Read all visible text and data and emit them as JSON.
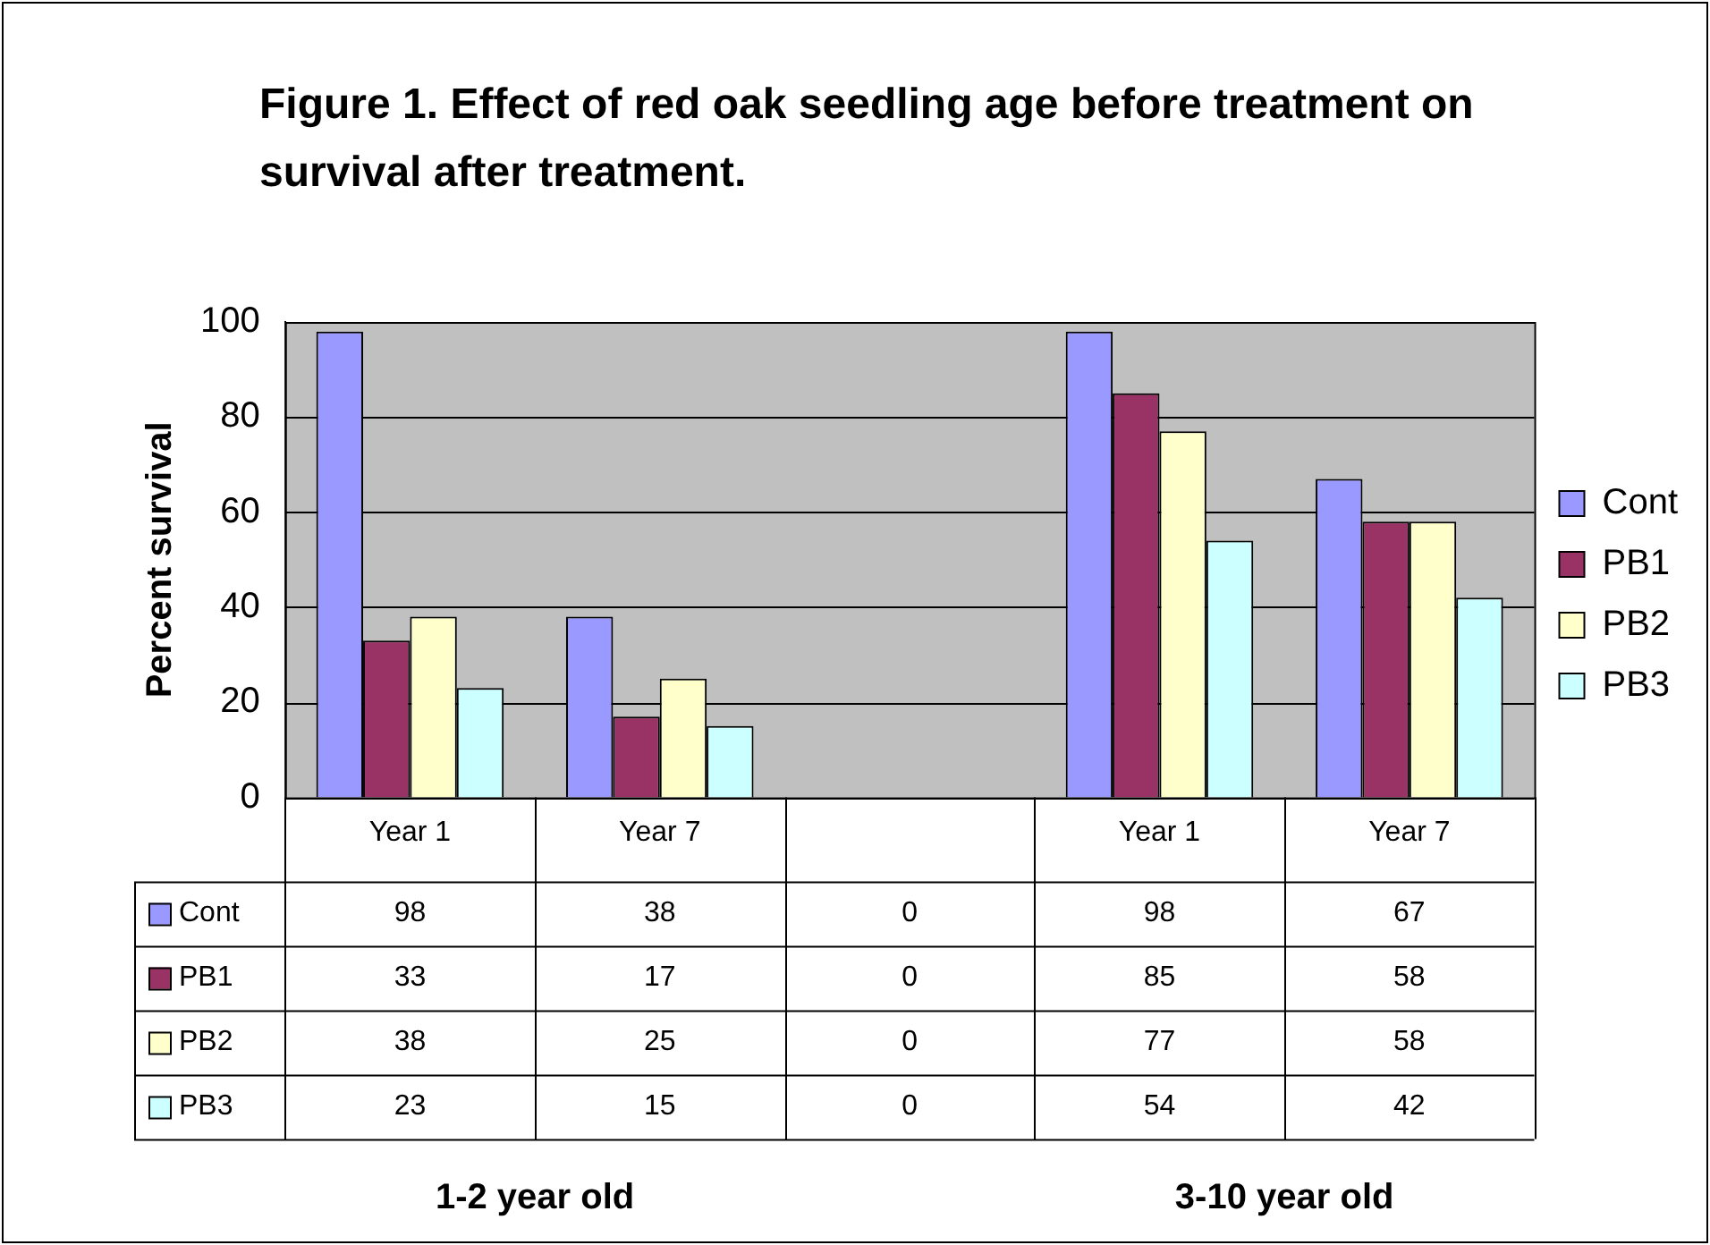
{
  "chart_data": {
    "type": "bar",
    "title": "Figure 1. Effect of red oak seedling age before treatment on survival after treatment.",
    "ylabel": "Percent survival",
    "categories": [
      "Year 1",
      "Year 7",
      null,
      "Year 1",
      "Year 7"
    ],
    "series": [
      {
        "name": "Cont",
        "color": "#9999ff",
        "values": [
          98,
          38,
          0,
          98,
          67
        ]
      },
      {
        "name": "PB1",
        "color": "#993366",
        "values": [
          33,
          17,
          0,
          85,
          58
        ]
      },
      {
        "name": "PB2",
        "color": "#ffffcc",
        "values": [
          38,
          25,
          0,
          77,
          58
        ]
      },
      {
        "name": "PB3",
        "color": "#ccffff",
        "values": [
          23,
          15,
          0,
          54,
          42
        ]
      }
    ],
    "ylim": [
      0,
      100
    ],
    "yticks": [
      0,
      20,
      40,
      60,
      80,
      100
    ],
    "grid": "y",
    "legend": "right",
    "data_labels": true,
    "annotations": [
      "1-2 year old",
      "3-10 year old"
    ]
  }
}
